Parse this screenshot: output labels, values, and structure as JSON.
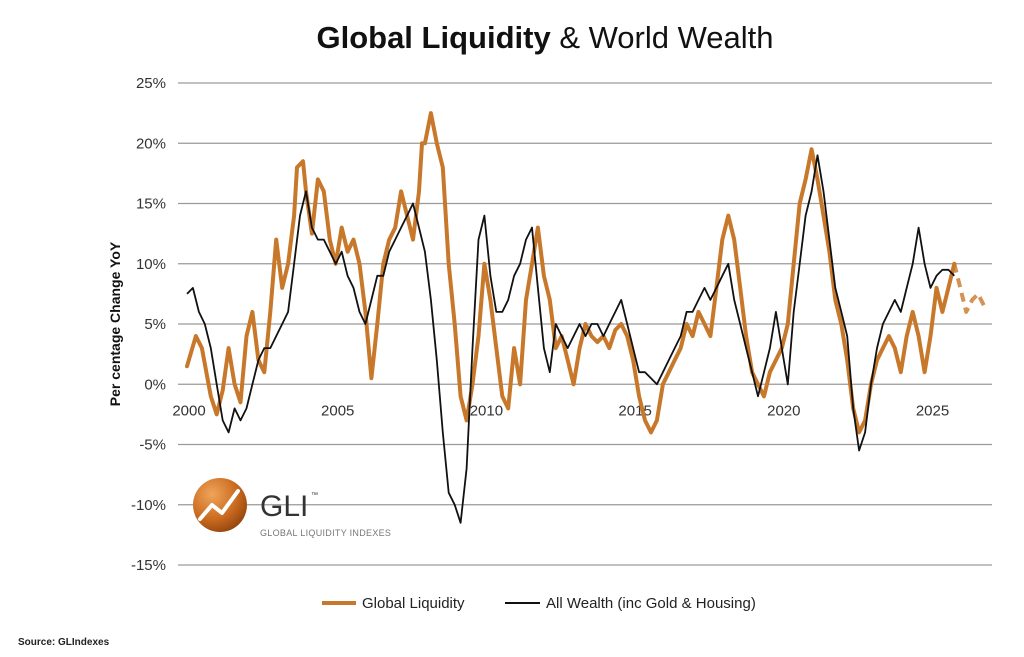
{
  "title_bold": "Global Liquidity",
  "title_rest": "& World Wealth",
  "source": "Source: GLIndexes",
  "logo": {
    "name": "GLI",
    "tm": "™",
    "subtitle": "GLOBAL LIQUIDITY INDEXES"
  },
  "colors": {
    "liquidity": "#c8782a",
    "wealth": "#111111",
    "grid": "#9a9a9a"
  },
  "chart_data": {
    "type": "line",
    "title": "Global Liquidity & World Wealth",
    "xlabel": "",
    "ylabel": "Per centage Change YoY",
    "xlim": [
      2000,
      2027
    ],
    "ylim": [
      -15,
      25
    ],
    "y_ticks": [
      25,
      20,
      15,
      10,
      5,
      0,
      -5,
      -10,
      -15
    ],
    "y_tick_labels": [
      "25%",
      "20%",
      "15%",
      "10%",
      "5%",
      "0%",
      "-5%",
      "-10%",
      "-15%"
    ],
    "x_ticks": [
      2000,
      2005,
      2010,
      2015,
      2020,
      2025
    ],
    "x_tick_labels": [
      "2000",
      "2005",
      "2010",
      "2015",
      "2020",
      "2025"
    ],
    "grid": true,
    "legend_position": "bottom",
    "series": [
      {
        "name": "Global Liquidity",
        "color": "#c8782a",
        "projection_from": 2025.8,
        "points": [
          [
            2000.0,
            1.5
          ],
          [
            2000.3,
            4
          ],
          [
            2000.5,
            3
          ],
          [
            2000.8,
            -1
          ],
          [
            2001.0,
            -2.5
          ],
          [
            2001.2,
            -0.5
          ],
          [
            2001.4,
            3
          ],
          [
            2001.6,
            0
          ],
          [
            2001.8,
            -1.5
          ],
          [
            2002.0,
            4
          ],
          [
            2002.2,
            6
          ],
          [
            2002.4,
            2
          ],
          [
            2002.6,
            1
          ],
          [
            2002.8,
            6
          ],
          [
            2003.0,
            12
          ],
          [
            2003.2,
            8
          ],
          [
            2003.4,
            10
          ],
          [
            2003.6,
            14
          ],
          [
            2003.7,
            18
          ],
          [
            2003.9,
            18.5
          ],
          [
            2004.0,
            16
          ],
          [
            2004.2,
            12.5
          ],
          [
            2004.4,
            17
          ],
          [
            2004.6,
            16
          ],
          [
            2004.8,
            12
          ],
          [
            2005.0,
            10
          ],
          [
            2005.2,
            13
          ],
          [
            2005.4,
            11
          ],
          [
            2005.6,
            12
          ],
          [
            2005.8,
            10
          ],
          [
            2006.0,
            6
          ],
          [
            2006.2,
            0.5
          ],
          [
            2006.4,
            5
          ],
          [
            2006.6,
            10
          ],
          [
            2006.8,
            12
          ],
          [
            2007.0,
            13
          ],
          [
            2007.2,
            16
          ],
          [
            2007.4,
            14
          ],
          [
            2007.6,
            12
          ],
          [
            2007.8,
            16
          ],
          [
            2007.9,
            20
          ],
          [
            2008.0,
            20
          ],
          [
            2008.2,
            22.5
          ],
          [
            2008.4,
            20
          ],
          [
            2008.6,
            18
          ],
          [
            2008.8,
            10
          ],
          [
            2009.0,
            5
          ],
          [
            2009.2,
            -1
          ],
          [
            2009.4,
            -3
          ],
          [
            2009.6,
            0
          ],
          [
            2009.8,
            4
          ],
          [
            2010.0,
            10
          ],
          [
            2010.2,
            7
          ],
          [
            2010.4,
            3
          ],
          [
            2010.6,
            -1
          ],
          [
            2010.8,
            -2
          ],
          [
            2011.0,
            3
          ],
          [
            2011.2,
            0
          ],
          [
            2011.4,
            7
          ],
          [
            2011.6,
            10
          ],
          [
            2011.8,
            13
          ],
          [
            2012.0,
            9
          ],
          [
            2012.2,
            7
          ],
          [
            2012.4,
            3
          ],
          [
            2012.6,
            4
          ],
          [
            2012.8,
            2
          ],
          [
            2013.0,
            0
          ],
          [
            2013.2,
            3
          ],
          [
            2013.4,
            5
          ],
          [
            2013.6,
            4
          ],
          [
            2013.8,
            3.5
          ],
          [
            2014.0,
            4
          ],
          [
            2014.2,
            3
          ],
          [
            2014.4,
            4.5
          ],
          [
            2014.6,
            5
          ],
          [
            2014.8,
            4
          ],
          [
            2015.0,
            2
          ],
          [
            2015.2,
            -1
          ],
          [
            2015.4,
            -3
          ],
          [
            2015.6,
            -4
          ],
          [
            2015.8,
            -3
          ],
          [
            2016.0,
            0
          ],
          [
            2016.2,
            1
          ],
          [
            2016.4,
            2
          ],
          [
            2016.6,
            3
          ],
          [
            2016.8,
            5
          ],
          [
            2017.0,
            4
          ],
          [
            2017.2,
            6
          ],
          [
            2017.4,
            5
          ],
          [
            2017.6,
            4
          ],
          [
            2017.8,
            8
          ],
          [
            2018.0,
            12
          ],
          [
            2018.2,
            14
          ],
          [
            2018.4,
            12
          ],
          [
            2018.6,
            8
          ],
          [
            2018.8,
            4
          ],
          [
            2019.0,
            1
          ],
          [
            2019.2,
            0
          ],
          [
            2019.4,
            -1
          ],
          [
            2019.6,
            1
          ],
          [
            2019.8,
            2
          ],
          [
            2020.0,
            3
          ],
          [
            2020.2,
            5
          ],
          [
            2020.4,
            10
          ],
          [
            2020.6,
            15
          ],
          [
            2020.8,
            17
          ],
          [
            2021.0,
            19.5
          ],
          [
            2021.2,
            17
          ],
          [
            2021.4,
            14
          ],
          [
            2021.6,
            11
          ],
          [
            2021.8,
            7
          ],
          [
            2022.0,
            5
          ],
          [
            2022.2,
            2
          ],
          [
            2022.4,
            -2
          ],
          [
            2022.6,
            -4
          ],
          [
            2022.8,
            -3
          ],
          [
            2023.0,
            0
          ],
          [
            2023.2,
            2
          ],
          [
            2023.4,
            3
          ],
          [
            2023.6,
            4
          ],
          [
            2023.8,
            3
          ],
          [
            2024.0,
            1
          ],
          [
            2024.2,
            4
          ],
          [
            2024.4,
            6
          ],
          [
            2024.6,
            4
          ],
          [
            2024.8,
            1
          ],
          [
            2025.0,
            4
          ],
          [
            2025.2,
            8
          ],
          [
            2025.4,
            6
          ],
          [
            2025.6,
            8
          ],
          [
            2025.8,
            10
          ],
          [
            2026.0,
            8
          ],
          [
            2026.2,
            6
          ],
          [
            2026.4,
            7
          ],
          [
            2026.6,
            7.5
          ],
          [
            2026.8,
            6.5
          ]
        ]
      },
      {
        "name": "All Wealth (inc Gold & Housing)",
        "color": "#111111",
        "points": [
          [
            2000.0,
            7.5
          ],
          [
            2000.2,
            8
          ],
          [
            2000.4,
            6
          ],
          [
            2000.6,
            5
          ],
          [
            2000.8,
            3
          ],
          [
            2001.0,
            0
          ],
          [
            2001.2,
            -3
          ],
          [
            2001.4,
            -4
          ],
          [
            2001.6,
            -2
          ],
          [
            2001.8,
            -3
          ],
          [
            2002.0,
            -2
          ],
          [
            2002.2,
            0
          ],
          [
            2002.4,
            2
          ],
          [
            2002.6,
            3
          ],
          [
            2002.8,
            3
          ],
          [
            2003.0,
            4
          ],
          [
            2003.2,
            5
          ],
          [
            2003.4,
            6
          ],
          [
            2003.6,
            10
          ],
          [
            2003.8,
            14
          ],
          [
            2004.0,
            16
          ],
          [
            2004.2,
            13
          ],
          [
            2004.4,
            12
          ],
          [
            2004.6,
            12
          ],
          [
            2004.8,
            11
          ],
          [
            2005.0,
            10
          ],
          [
            2005.2,
            11
          ],
          [
            2005.4,
            9
          ],
          [
            2005.6,
            8
          ],
          [
            2005.8,
            6
          ],
          [
            2006.0,
            5
          ],
          [
            2006.2,
            7
          ],
          [
            2006.4,
            9
          ],
          [
            2006.6,
            9
          ],
          [
            2006.8,
            11
          ],
          [
            2007.0,
            12
          ],
          [
            2007.2,
            13
          ],
          [
            2007.4,
            14
          ],
          [
            2007.6,
            15
          ],
          [
            2007.8,
            13
          ],
          [
            2008.0,
            11
          ],
          [
            2008.2,
            7
          ],
          [
            2008.4,
            2
          ],
          [
            2008.6,
            -4
          ],
          [
            2008.8,
            -9
          ],
          [
            2009.0,
            -10
          ],
          [
            2009.2,
            -11.5
          ],
          [
            2009.4,
            -7
          ],
          [
            2009.6,
            3
          ],
          [
            2009.8,
            12
          ],
          [
            2010.0,
            14
          ],
          [
            2010.2,
            9
          ],
          [
            2010.4,
            6
          ],
          [
            2010.6,
            6
          ],
          [
            2010.8,
            7
          ],
          [
            2011.0,
            9
          ],
          [
            2011.2,
            10
          ],
          [
            2011.4,
            12
          ],
          [
            2011.6,
            13
          ],
          [
            2011.8,
            8
          ],
          [
            2012.0,
            3
          ],
          [
            2012.2,
            1
          ],
          [
            2012.4,
            5
          ],
          [
            2012.6,
            4
          ],
          [
            2012.8,
            3
          ],
          [
            2013.0,
            4
          ],
          [
            2013.2,
            5
          ],
          [
            2013.4,
            4
          ],
          [
            2013.6,
            5
          ],
          [
            2013.8,
            5
          ],
          [
            2014.0,
            4
          ],
          [
            2014.2,
            5
          ],
          [
            2014.4,
            6
          ],
          [
            2014.6,
            7
          ],
          [
            2014.8,
            5
          ],
          [
            2015.0,
            3
          ],
          [
            2015.2,
            1
          ],
          [
            2015.4,
            1
          ],
          [
            2015.6,
            0.5
          ],
          [
            2015.8,
            0
          ],
          [
            2016.0,
            1
          ],
          [
            2016.2,
            2
          ],
          [
            2016.4,
            3
          ],
          [
            2016.6,
            4
          ],
          [
            2016.8,
            6
          ],
          [
            2017.0,
            6
          ],
          [
            2017.2,
            7
          ],
          [
            2017.4,
            8
          ],
          [
            2017.6,
            7
          ],
          [
            2017.8,
            8
          ],
          [
            2018.0,
            9
          ],
          [
            2018.2,
            10
          ],
          [
            2018.4,
            7
          ],
          [
            2018.6,
            5
          ],
          [
            2018.8,
            3
          ],
          [
            2019.0,
            1
          ],
          [
            2019.2,
            -1
          ],
          [
            2019.4,
            1
          ],
          [
            2019.6,
            3
          ],
          [
            2019.8,
            6
          ],
          [
            2020.0,
            3
          ],
          [
            2020.2,
            0
          ],
          [
            2020.4,
            6
          ],
          [
            2020.6,
            10
          ],
          [
            2020.8,
            14
          ],
          [
            2021.0,
            16
          ],
          [
            2021.2,
            19
          ],
          [
            2021.4,
            16
          ],
          [
            2021.6,
            12
          ],
          [
            2021.8,
            8
          ],
          [
            2022.0,
            6
          ],
          [
            2022.2,
            4
          ],
          [
            2022.4,
            -2
          ],
          [
            2022.6,
            -5.5
          ],
          [
            2022.8,
            -4
          ],
          [
            2023.0,
            0
          ],
          [
            2023.2,
            3
          ],
          [
            2023.4,
            5
          ],
          [
            2023.6,
            6
          ],
          [
            2023.8,
            7
          ],
          [
            2024.0,
            6
          ],
          [
            2024.2,
            8
          ],
          [
            2024.4,
            10
          ],
          [
            2024.6,
            13
          ],
          [
            2024.8,
            10
          ],
          [
            2025.0,
            8
          ],
          [
            2025.2,
            9
          ],
          [
            2025.4,
            9.5
          ],
          [
            2025.6,
            9.5
          ],
          [
            2025.8,
            9
          ]
        ]
      }
    ]
  }
}
